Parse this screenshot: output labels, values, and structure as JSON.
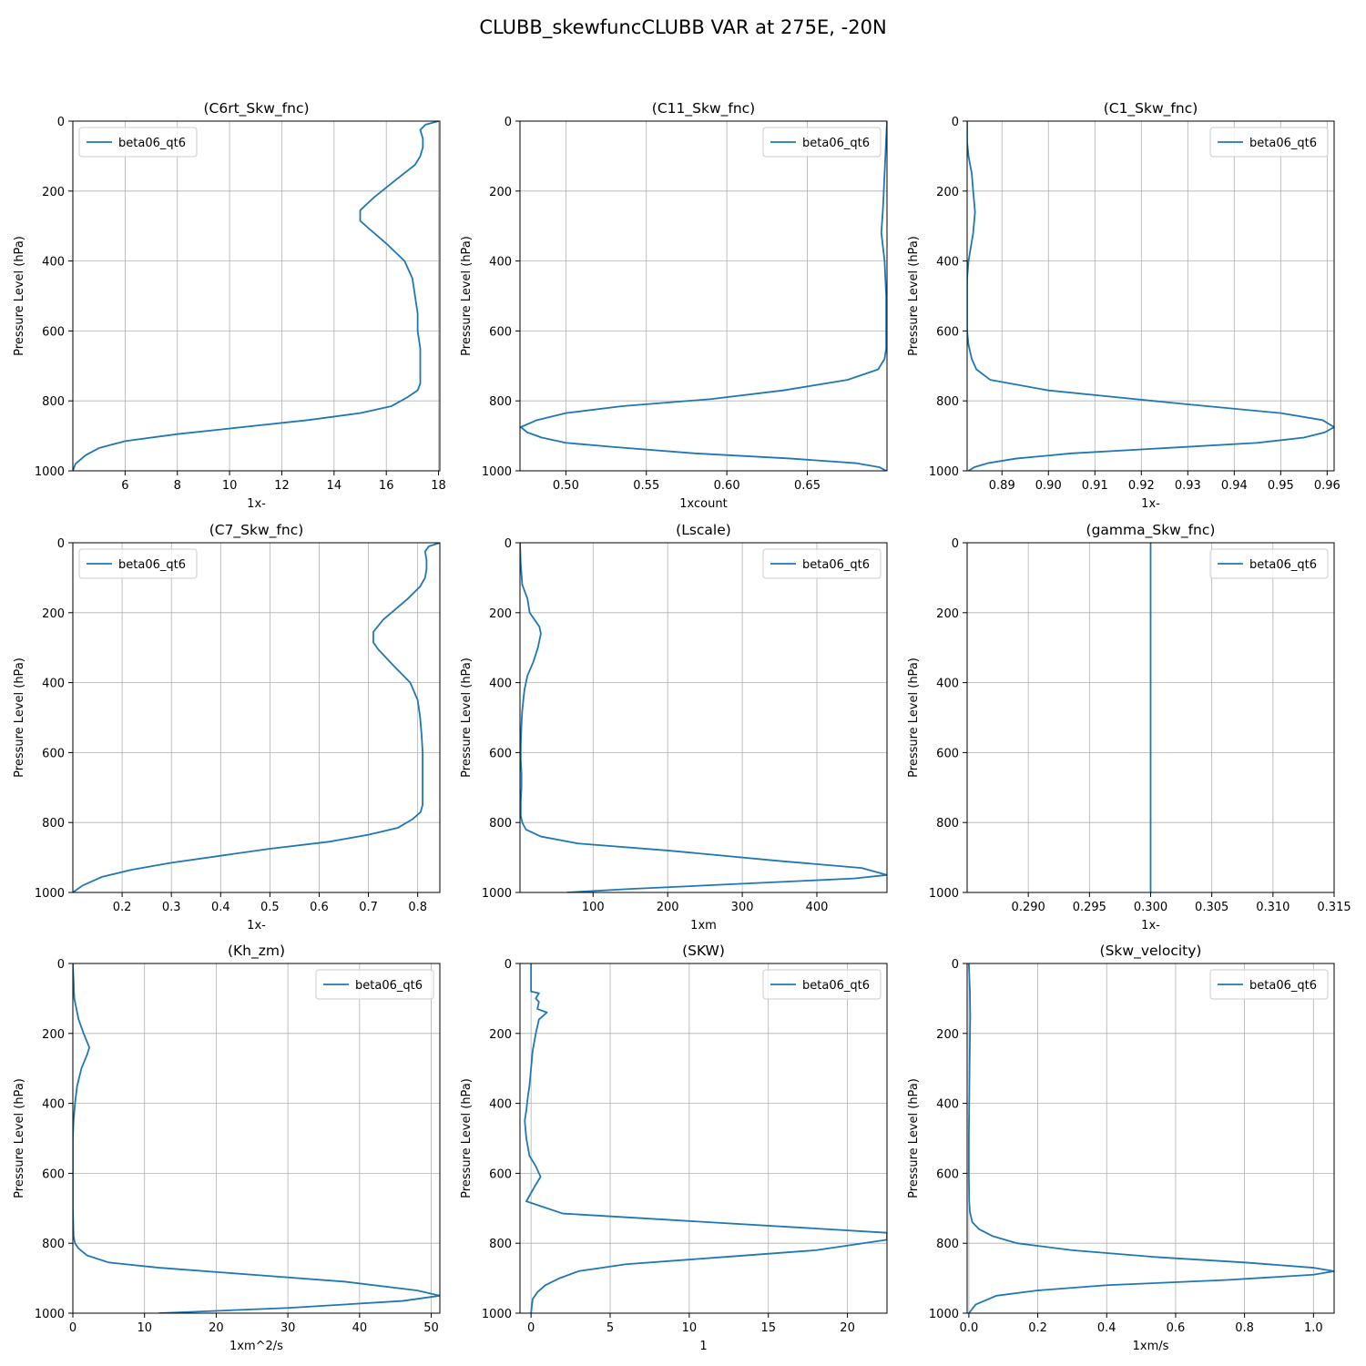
{
  "figure": {
    "title": "CLUBB_skewfuncCLUBB VAR at 275E, -20N",
    "series_color": "#1f77b4"
  },
  "chart_data": [
    {
      "type": "line",
      "title": "(C6rt_Skw_fnc)",
      "xlabel": "1x-",
      "ylabel": "Pressure Level (hPa)",
      "legend": "upper left",
      "legend_label": "beta06_qt6",
      "grid": true,
      "xlim": [
        4.0,
        18.05
      ],
      "xticks": [
        6,
        8,
        10,
        12,
        14,
        16,
        18
      ],
      "ylim": [
        1000,
        0
      ],
      "yticks": [
        0,
        200,
        400,
        600,
        800,
        1000
      ],
      "series": [
        {
          "name": "beta06_qt6",
          "x": [
            18.0,
            17.5,
            17.3,
            17.4,
            17.4,
            17.3,
            17.1,
            16.5,
            15.5,
            15.0,
            15.0,
            15.3,
            16.0,
            16.7,
            17.0,
            17.1,
            17.2,
            17.2,
            17.3,
            17.3,
            17.3,
            17.2,
            16.8,
            16.2,
            15.0,
            13.0,
            10.5,
            8.0,
            6.0,
            5.0,
            4.5,
            4.1,
            4.0
          ],
          "y": [
            0,
            10,
            25,
            50,
            75,
            100,
            125,
            160,
            220,
            255,
            285,
            305,
            350,
            400,
            450,
            500,
            550,
            600,
            650,
            700,
            750,
            770,
            790,
            815,
            835,
            855,
            875,
            895,
            915,
            935,
            955,
            980,
            1000
          ]
        }
      ]
    },
    {
      "type": "line",
      "title": "(C11_Skw_fnc)",
      "xlabel": "1xcount",
      "ylabel": "Pressure Level (hPa)",
      "legend": "upper right",
      "legend_label": "beta06_qt6",
      "grid": true,
      "xlim": [
        0.4715,
        0.6995
      ],
      "xticks": [
        0.5,
        0.55,
        0.6,
        0.65
      ],
      "xtick_labels": [
        "0.50",
        "0.55",
        "0.60",
        "0.65"
      ],
      "ylim": [
        1000,
        0
      ],
      "yticks": [
        0,
        200,
        400,
        600,
        800,
        1000
      ],
      "series": [
        {
          "name": "beta06_qt6",
          "x": [
            0.6995,
            0.699,
            0.698,
            0.697,
            0.696,
            0.698,
            0.699,
            0.699,
            0.699,
            0.698,
            0.694,
            0.675,
            0.635,
            0.59,
            0.535,
            0.5,
            0.482,
            0.472,
            0.476,
            0.485,
            0.5,
            0.53,
            0.58,
            0.64,
            0.68,
            0.695,
            0.699
          ],
          "y": [
            0,
            50,
            150,
            250,
            320,
            400,
            500,
            600,
            650,
            680,
            710,
            740,
            770,
            795,
            815,
            835,
            855,
            875,
            890,
            905,
            920,
            932,
            950,
            965,
            978,
            990,
            1000
          ]
        }
      ]
    },
    {
      "type": "line",
      "title": "(C1_Skw_fnc)",
      "xlabel": "1x-",
      "ylabel": "Pressure Level (hPa)",
      "legend": "upper right",
      "legend_label": "beta06_qt6",
      "grid": true,
      "xlim": [
        0.8825,
        0.9615
      ],
      "xticks": [
        0.89,
        0.9,
        0.91,
        0.92,
        0.93,
        0.94,
        0.95,
        0.96
      ],
      "xtick_labels": [
        "0.89",
        "0.90",
        "0.91",
        "0.92",
        "0.93",
        "0.94",
        "0.95",
        "0.96"
      ],
      "ylim": [
        1000,
        0
      ],
      "yticks": [
        0,
        200,
        400,
        600,
        800,
        1000
      ],
      "series": [
        {
          "name": "beta06_qt6",
          "x": [
            0.8825,
            0.8825,
            0.8828,
            0.8835,
            0.8838,
            0.8842,
            0.8838,
            0.8828,
            0.8825,
            0.8825,
            0.8828,
            0.8835,
            0.8845,
            0.8875,
            0.9,
            0.915,
            0.93,
            0.95,
            0.959,
            0.9615,
            0.9595,
            0.955,
            0.945,
            0.925,
            0.905,
            0.893,
            0.887,
            0.884,
            0.8828
          ],
          "y": [
            0,
            60,
            100,
            150,
            200,
            260,
            320,
            400,
            450,
            600,
            640,
            680,
            710,
            740,
            770,
            790,
            810,
            835,
            855,
            875,
            890,
            905,
            920,
            935,
            950,
            965,
            978,
            990,
            1000
          ]
        }
      ]
    },
    {
      "type": "line",
      "title": "(C7_Skw_fnc)",
      "xlabel": "1x-",
      "ylabel": "Pressure Level (hPa)",
      "legend": "upper left",
      "legend_label": "beta06_qt6",
      "grid": true,
      "xlim": [
        0.1,
        0.845
      ],
      "xticks": [
        0.2,
        0.3,
        0.4,
        0.5,
        0.6,
        0.7,
        0.8
      ],
      "ylim": [
        1000,
        0
      ],
      "yticks": [
        0,
        200,
        400,
        600,
        800,
        1000
      ],
      "series": [
        {
          "name": "beta06_qt6",
          "x": [
            0.845,
            0.823,
            0.815,
            0.818,
            0.818,
            0.815,
            0.805,
            0.78,
            0.73,
            0.71,
            0.71,
            0.72,
            0.75,
            0.785,
            0.8,
            0.805,
            0.808,
            0.81,
            0.81,
            0.81,
            0.81,
            0.806,
            0.79,
            0.76,
            0.7,
            0.62,
            0.5,
            0.4,
            0.3,
            0.22,
            0.16,
            0.12,
            0.1
          ],
          "y": [
            0,
            10,
            25,
            50,
            75,
            100,
            125,
            160,
            220,
            255,
            285,
            305,
            350,
            400,
            450,
            500,
            550,
            600,
            650,
            700,
            750,
            770,
            790,
            815,
            835,
            855,
            875,
            895,
            915,
            935,
            955,
            980,
            1000
          ]
        }
      ]
    },
    {
      "type": "line",
      "title": "(Lscale)",
      "xlabel": "1xm",
      "ylabel": "Pressure Level (hPa)",
      "legend": "upper right",
      "legend_label": "beta06_qt6",
      "grid": true,
      "xlim": [
        2.0,
        494.0
      ],
      "xticks": [
        100,
        200,
        300,
        400
      ],
      "ylim": [
        1000,
        0
      ],
      "yticks": [
        0,
        200,
        400,
        600,
        800,
        1000
      ],
      "series": [
        {
          "name": "beta06_qt6",
          "x": [
            2,
            3,
            5,
            12,
            15,
            28,
            30,
            26,
            20,
            12,
            8,
            5,
            4,
            3,
            3,
            4,
            4,
            3,
            3,
            5,
            10,
            30,
            80,
            200,
            350,
            460,
            494,
            450,
            300,
            150,
            65
          ],
          "y": [
            0,
            60,
            120,
            160,
            200,
            240,
            260,
            300,
            340,
            380,
            420,
            480,
            520,
            580,
            620,
            660,
            700,
            740,
            780,
            800,
            820,
            840,
            860,
            880,
            910,
            930,
            950,
            960,
            975,
            990,
            1000
          ]
        }
      ]
    },
    {
      "type": "line",
      "title": "(gamma_Skw_fnc)",
      "xlabel": "1x-",
      "ylabel": "Pressure Level (hPa)",
      "legend": "upper right",
      "legend_label": "beta06_qt6",
      "grid": true,
      "xlim": [
        0.285,
        0.315
      ],
      "xticks": [
        0.29,
        0.295,
        0.3,
        0.305,
        0.31,
        0.315
      ],
      "xtick_labels": [
        "0.290",
        "0.295",
        "0.300",
        "0.305",
        "0.310",
        "0.315"
      ],
      "ylim": [
        1000,
        0
      ],
      "yticks": [
        0,
        200,
        400,
        600,
        800,
        1000
      ],
      "series": [
        {
          "name": "beta06_qt6",
          "x": [
            0.3,
            0.3
          ],
          "y": [
            0,
            1000
          ]
        }
      ]
    },
    {
      "type": "line",
      "title": "(Kh_zm)",
      "xlabel": "1xm^2/s",
      "ylabel": "Pressure Level (hPa)",
      "legend": "upper right",
      "legend_label": "beta06_qt6",
      "grid": true,
      "xlim": [
        0.0,
        51.2
      ],
      "xticks": [
        0,
        10,
        20,
        30,
        40,
        50
      ],
      "ylim": [
        1000,
        0
      ],
      "yticks": [
        0,
        200,
        400,
        600,
        800,
        1000
      ],
      "series": [
        {
          "name": "beta06_qt6",
          "x": [
            0,
            0.2,
            0.5,
            0.8,
            1.5,
            2.3,
            2.0,
            1.2,
            0.6,
            0.3,
            0.1,
            0,
            0,
            0,
            0.1,
            0.3,
            0.8,
            2.0,
            5.0,
            12,
            25,
            38,
            48,
            51.2,
            46,
            30,
            12
          ],
          "y": [
            0,
            100,
            130,
            160,
            200,
            240,
            260,
            300,
            350,
            400,
            450,
            500,
            600,
            700,
            780,
            800,
            815,
            835,
            855,
            870,
            890,
            910,
            935,
            950,
            965,
            985,
            1000
          ]
        }
      ]
    },
    {
      "type": "line",
      "title": "(SKW)",
      "xlabel": "1",
      "ylabel": "Pressure Level (hPa)",
      "legend": "upper right",
      "legend_label": "beta06_qt6",
      "grid": true,
      "xlim": [
        -0.7,
        22.5
      ],
      "xticks": [
        0,
        5,
        10,
        15,
        20
      ],
      "ylim": [
        1000,
        0
      ],
      "yticks": [
        0,
        200,
        400,
        600,
        800,
        1000
      ],
      "series": [
        {
          "name": "beta06_qt6",
          "x": [
            0,
            0,
            0,
            0.5,
            0.3,
            0.5,
            0.4,
            1.0,
            0.5,
            0.3,
            0.1,
            0,
            -0.1,
            -0.2,
            -0.3,
            -0.4,
            -0.3,
            -0.1,
            0.3,
            0.6,
            0.2,
            -0.3,
            2.0,
            22.5,
            22.5,
            18.0,
            12.0,
            6.0,
            3.0,
            1.8,
            0.9,
            0.4,
            0.1,
            0
          ],
          "y": [
            0,
            40,
            80,
            85,
            100,
            110,
            130,
            140,
            160,
            200,
            250,
            300,
            350,
            380,
            420,
            450,
            500,
            550,
            580,
            610,
            640,
            680,
            715,
            770,
            790,
            820,
            840,
            860,
            880,
            900,
            920,
            940,
            960,
            1000
          ]
        }
      ]
    },
    {
      "type": "line",
      "title": "(Skw_velocity)",
      "xlabel": "1xm/s",
      "ylabel": "Pressure Level (hPa)",
      "legend": "upper right",
      "legend_label": "beta06_qt6",
      "grid": true,
      "xlim": [
        -0.005,
        1.06
      ],
      "xticks": [
        0.0,
        0.2,
        0.4,
        0.6,
        0.8,
        1.0
      ],
      "xtick_labels": [
        "0.0",
        "0.2",
        "0.4",
        "0.6",
        "0.8",
        "1.0"
      ],
      "ylim": [
        1000,
        0
      ],
      "yticks": [
        0,
        200,
        400,
        600,
        800,
        1000
      ],
      "series": [
        {
          "name": "beta06_qt6",
          "x": [
            0.0,
            0.003,
            0.004,
            0.003,
            0.002,
            0.001,
            0.0,
            0.0,
            0.001,
            0.003,
            0.01,
            0.03,
            0.07,
            0.14,
            0.3,
            0.55,
            0.8,
            1.0,
            1.06,
            1.0,
            0.75,
            0.4,
            0.2,
            0.08,
            0.02,
            0.0
          ],
          "y": [
            0,
            80,
            150,
            220,
            300,
            400,
            500,
            600,
            680,
            710,
            740,
            760,
            780,
            800,
            820,
            840,
            855,
            870,
            880,
            890,
            905,
            920,
            935,
            950,
            975,
            1000
          ]
        }
      ]
    }
  ]
}
